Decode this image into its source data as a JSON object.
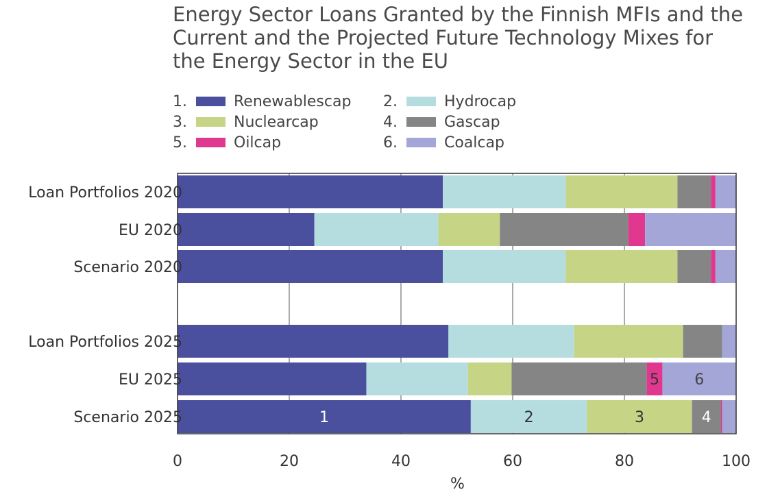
{
  "chart_data": {
    "type": "bar",
    "orientation": "horizontal",
    "stacked": true,
    "title": "Energy Sector Loans Granted by the Finnish MFIs and the Current and the Projected Future Technology Mixes for the Energy Sector in the EU",
    "title_lines": [
      "Energy Sector Loans Granted by the Finnish MFIs and the",
      "Current and the Projected Future Technology Mixes for",
      "the Energy Sector in the EU"
    ],
    "xlabel": "%",
    "xlim": [
      0,
      100
    ],
    "xticks": [
      0,
      20,
      40,
      60,
      80,
      100
    ],
    "grid": "vertical",
    "legend_placement": "top",
    "categories": [
      "Loan Portfolios 2020",
      "EU 2020",
      "Scenario 2020",
      "Loan Portfolios 2025",
      "EU 2025",
      "Scenario 2025"
    ],
    "series": [
      {
        "number": "1.",
        "name": "Renewablescap",
        "color": "#4a4f9e",
        "values": [
          47.5,
          24.5,
          47.5,
          48.5,
          33.8,
          52.5
        ]
      },
      {
        "number": "2.",
        "name": "Hydrocap",
        "color": "#b5dde0",
        "values": [
          22.0,
          22.2,
          22.0,
          22.5,
          18.2,
          20.8
        ]
      },
      {
        "number": "3.",
        "name": "Nuclearcap",
        "color": "#c6d485",
        "values": [
          20.0,
          11.0,
          20.0,
          19.5,
          7.8,
          18.8
        ]
      },
      {
        "number": "4.",
        "name": "Gascap",
        "color": "#858585",
        "values": [
          6.0,
          23.0,
          6.0,
          7.0,
          24.2,
          5.2
        ]
      },
      {
        "number": "5.",
        "name": "Oilcap",
        "color": "#e0388e",
        "values": [
          0.8,
          3.0,
          0.8,
          0.0,
          2.8,
          0.2
        ]
      },
      {
        "number": "6.",
        "name": "Coalcap",
        "color": "#a4a6d8",
        "values": [
          3.7,
          16.3,
          3.7,
          2.5,
          13.2,
          2.5
        ]
      }
    ],
    "segment_annotations": [
      {
        "category": "Scenario 2025",
        "series": "Renewablescap",
        "text": "1",
        "color": "#ffffff"
      },
      {
        "category": "Scenario 2025",
        "series": "Hydrocap",
        "text": "2",
        "color": "#333333"
      },
      {
        "category": "Scenario 2025",
        "series": "Nuclearcap",
        "text": "3",
        "color": "#333333"
      },
      {
        "category": "Scenario 2025",
        "series": "Gascap",
        "text": "4",
        "color": "#ffffff"
      },
      {
        "category": "EU 2025",
        "series": "Oilcap",
        "text": "5",
        "color": "#333333"
      },
      {
        "category": "EU 2025",
        "series": "Coalcap",
        "text": "6",
        "color": "#444444"
      }
    ]
  }
}
